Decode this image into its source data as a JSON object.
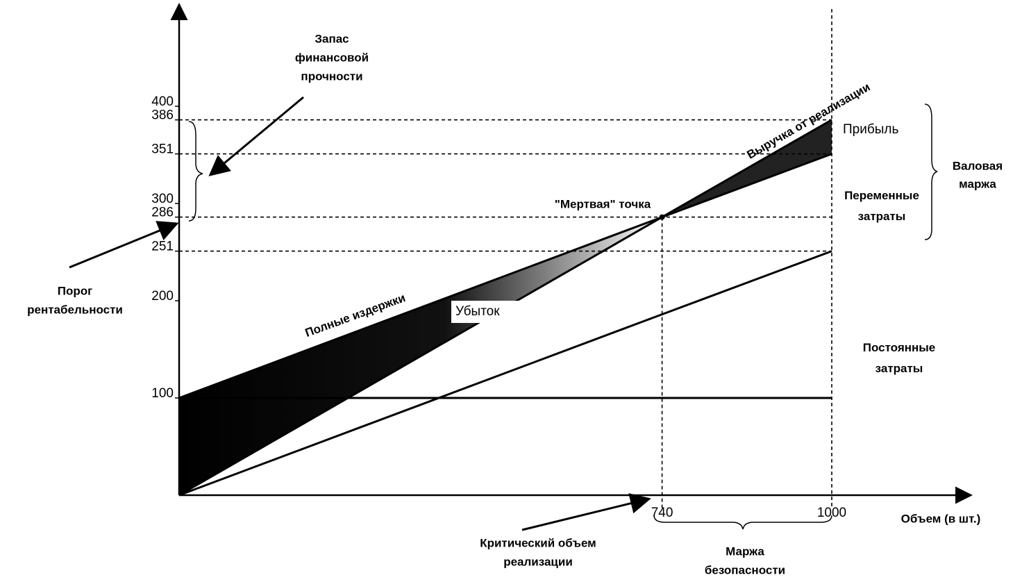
{
  "chart_data": {
    "type": "line",
    "x": [
      0,
      740,
      1000
    ],
    "series": [
      {
        "name": "Выручка от реализации",
        "color": "#000000",
        "values": [
          0,
          286,
          386
        ]
      },
      {
        "name": "Полные издержки",
        "color": "#000000",
        "values": [
          100,
          286,
          351
        ]
      },
      {
        "name": "Переменные затраты",
        "color": "#000000",
        "values": [
          0,
          186,
          251
        ]
      },
      {
        "name": "Постоянные затраты",
        "color": "#000000",
        "values": [
          100,
          100,
          100
        ]
      }
    ],
    "xlim": [
      0,
      1200
    ],
    "ylim": [
      0,
      500
    ],
    "xticks": [
      740,
      1000
    ],
    "yticks": [
      100,
      200,
      251,
      286,
      300,
      351,
      386,
      400
    ],
    "dashed_levels": [
      386,
      351,
      286,
      251
    ],
    "x_label": "Объем (в шт.)",
    "annotations": {
      "safety_stock": [
        "Запас",
        "финансовой",
        "прочности"
      ],
      "threshold": [
        "Порог",
        "рентабельности"
      ],
      "gross_margin": [
        "Валовая",
        "маржа"
      ],
      "dead_point": "\"Мертвая\" точка",
      "profit": "Прибыль",
      "loss": "Убыток",
      "critical_volume": [
        "Критический объем",
        "реализации"
      ],
      "safety_margin": [
        "Маржа",
        "безопасности"
      ]
    }
  }
}
